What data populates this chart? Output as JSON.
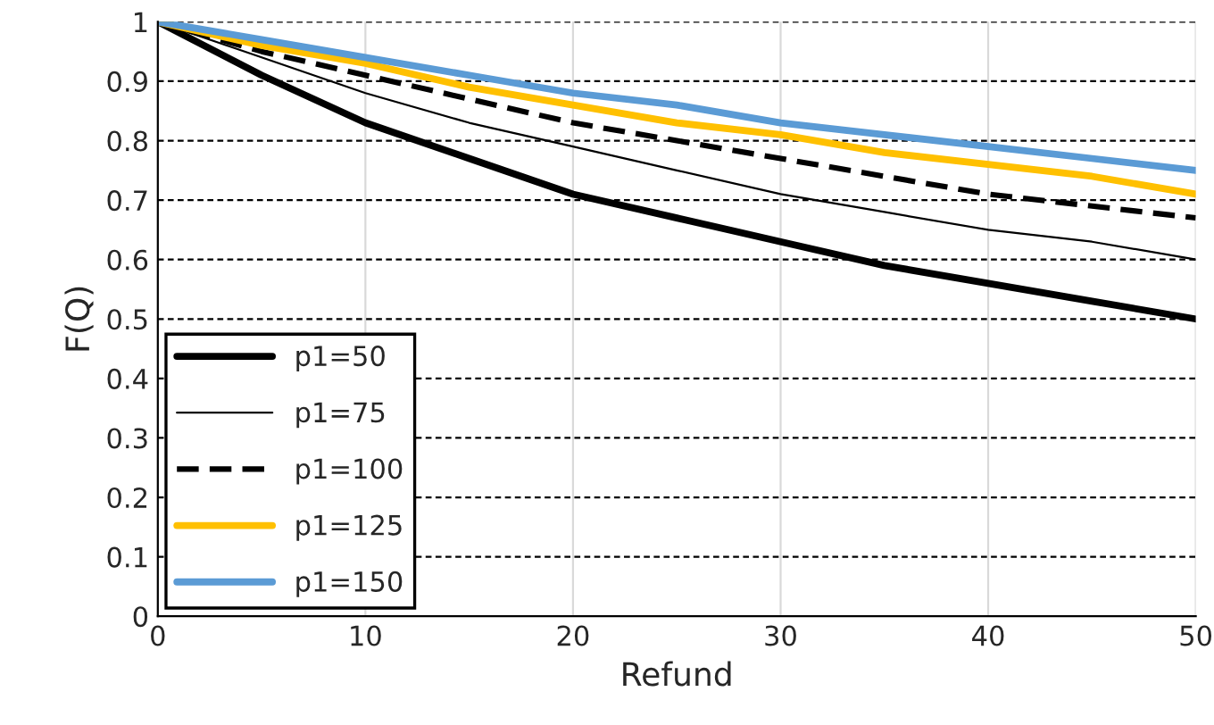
{
  "chart_data": {
    "type": "line",
    "xlabel": "Refund",
    "ylabel": "F(Q)",
    "x": [
      0,
      5,
      10,
      15,
      20,
      25,
      30,
      35,
      40,
      45,
      50
    ],
    "series": [
      {
        "name": "p1=50",
        "color": "#000000",
        "line_style": "solid",
        "values": [
          1,
          0.91,
          0.83,
          0.77,
          0.71,
          0.67,
          0.63,
          0.59,
          0.56,
          0.53,
          0.5
        ]
      },
      {
        "name": "p1=75",
        "color": "#000000",
        "line_style": "solid",
        "values": [
          1,
          0.94,
          0.88,
          0.83,
          0.79,
          0.75,
          0.71,
          0.68,
          0.65,
          0.63,
          0.6
        ]
      },
      {
        "name": "p1=100",
        "color": "#000000",
        "line_style": "dashed",
        "values": [
          1,
          0.95,
          0.91,
          0.87,
          0.83,
          0.8,
          0.77,
          0.74,
          0.71,
          0.69,
          0.67
        ]
      },
      {
        "name": "p1=125",
        "color": "#ffc000",
        "line_style": "solid",
        "values": [
          1,
          0.96,
          0.93,
          0.89,
          0.86,
          0.83,
          0.81,
          0.78,
          0.76,
          0.74,
          0.71
        ]
      },
      {
        "name": "p1=150",
        "color": "#5b9bd5",
        "line_style": "solid",
        "values": [
          1,
          0.97,
          0.94,
          0.91,
          0.88,
          0.86,
          0.83,
          0.81,
          0.79,
          0.77,
          0.75
        ]
      }
    ],
    "xlim": [
      0,
      50
    ],
    "xticks": [
      0,
      10,
      20,
      30,
      40,
      50
    ],
    "ylim": [
      0,
      1
    ],
    "yticks": [
      0,
      0.1,
      0.2,
      0.3,
      0.4,
      0.5,
      0.6,
      0.7,
      0.8,
      0.9,
      1
    ],
    "grid": true,
    "legend": "bottom left",
    "marker": "none"
  }
}
